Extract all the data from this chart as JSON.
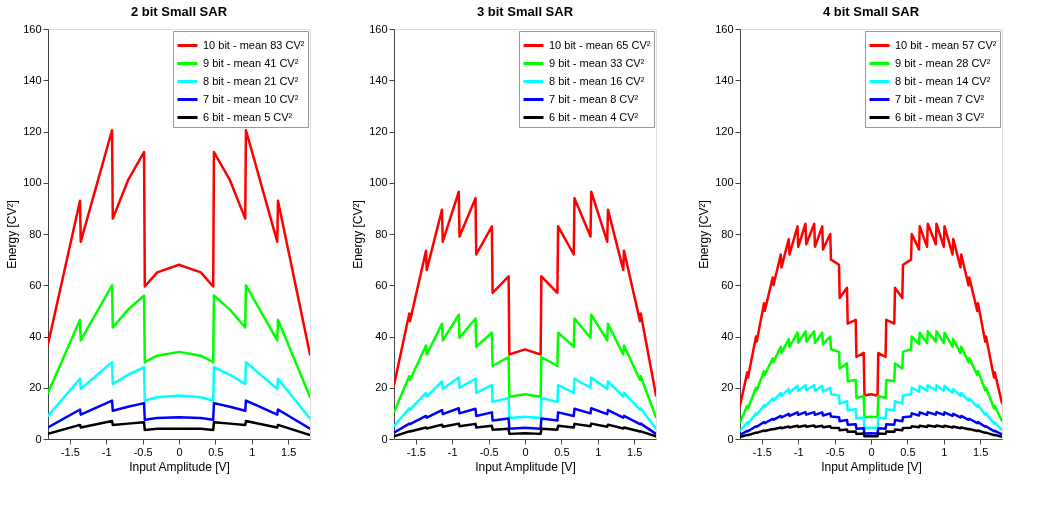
{
  "chart_data": [
    {
      "type": "line",
      "title": "2 bit Small SAR",
      "xlabel": "Input Amplitude [V]",
      "ylabel": "Energy [CV²]",
      "xlim": [
        -1.8,
        1.8
      ],
      "xticks": [
        -1.5,
        -1,
        -0.5,
        0,
        0.5,
        1,
        1.5
      ],
      "ylim": [
        0,
        160
      ],
      "yticks": [
        0,
        20,
        40,
        60,
        80,
        100,
        120,
        140,
        160
      ],
      "grid": false,
      "legend": "top right",
      "marker": "none",
      "line_style": "solid",
      "x": [
        -1.8,
        -1.36,
        -1.35,
        -0.92,
        -0.91,
        -0.7,
        -0.48,
        -0.47,
        -0.3,
        0,
        0.3,
        0.47,
        0.48,
        0.7,
        0.91,
        0.92,
        1.35,
        1.36,
        1.8
      ],
      "series": [
        {
          "name": "10 bit - mean 83 CV²",
          "color": "#ff0000",
          "values": [
            37,
            93,
            77,
            120.5,
            86,
            101,
            112,
            59.5,
            65,
            68,
            65,
            59.5,
            112,
            101,
            86,
            120.5,
            77,
            93,
            33
          ]
        },
        {
          "name": "9  bit  - mean 41 CV²",
          "color": "#00ff00",
          "values": [
            18,
            46.5,
            38.5,
            60,
            43.5,
            50.5,
            56,
            30,
            32.5,
            34,
            32.5,
            30,
            56,
            50.5,
            43.5,
            60,
            38.5,
            46.5,
            16.5
          ]
        },
        {
          "name": "8  bit  - mean 21 CV²",
          "color": "#00ffff",
          "values": [
            9,
            23.5,
            19.5,
            30,
            21.5,
            25,
            28,
            15,
            16.3,
            17,
            16.3,
            15,
            28,
            25,
            21.5,
            30,
            19.5,
            23.5,
            8
          ]
        },
        {
          "name": "7  bit  - mean 10 CV²",
          "color": "#0000ff",
          "values": [
            4.5,
            11.5,
            9.5,
            15,
            11,
            12.6,
            14,
            7.5,
            8.2,
            8.5,
            8.2,
            7.5,
            14,
            12.6,
            11,
            15,
            9.5,
            11.5,
            4
          ]
        },
        {
          "name": "6  bit  - mean   5 CV²",
          "color": "#000000",
          "values": [
            2,
            5.5,
            4.5,
            7,
            5.5,
            6,
            6.5,
            3.5,
            4,
            4,
            4,
            3.5,
            6.5,
            6,
            5.5,
            7,
            4.5,
            5.5,
            1.5
          ]
        }
      ]
    },
    {
      "type": "line",
      "title": "3 bit Small SAR",
      "xlabel": "Input Amplitude [V]",
      "ylabel": "Energy [CV²]",
      "xlim": [
        -1.8,
        1.8
      ],
      "xticks": [
        -1.5,
        -1,
        -0.5,
        0,
        0.5,
        1,
        1.5
      ],
      "ylim": [
        0,
        160
      ],
      "yticks": [
        0,
        20,
        40,
        60,
        80,
        100,
        120,
        140,
        160
      ],
      "grid": false,
      "legend": "top right",
      "marker": "none",
      "line_style": "solid",
      "x": [
        -1.8,
        -1.59,
        -1.58,
        -1.36,
        -1.35,
        -1.14,
        -1.13,
        -0.91,
        -0.9,
        -0.68,
        -0.67,
        -0.455,
        -0.445,
        -0.225,
        -0.215,
        0,
        0.215,
        0.225,
        0.445,
        0.455,
        0.67,
        0.68,
        0.9,
        0.91,
        1.13,
        1.14,
        1.35,
        1.36,
        1.58,
        1.59,
        1.8
      ],
      "series": [
        {
          "name": "10 bit - mean 65 CV²",
          "color": "#ff0000",
          "values": [
            21,
            49,
            46,
            73.5,
            66,
            89.5,
            77,
            96.5,
            79,
            94,
            72,
            83,
            57,
            63.5,
            33,
            35,
            33,
            63.5,
            57,
            83,
            72,
            94,
            79,
            96.5,
            77,
            89.5,
            66,
            73.5,
            46,
            49,
            17
          ]
        },
        {
          "name": "9  bit - mean 33 CV²",
          "color": "#00ff00",
          "values": [
            10.5,
            24.5,
            23,
            36.5,
            33,
            45,
            38.5,
            48.5,
            39.5,
            47,
            36,
            41.5,
            28.5,
            32,
            16.5,
            17.5,
            16.5,
            32,
            28.5,
            41.5,
            36,
            47,
            39.5,
            48.5,
            38.5,
            45,
            33,
            36.5,
            23,
            24.5,
            8.5
          ]
        },
        {
          "name": "8  bit - mean 16 CV²",
          "color": "#00ffff",
          "values": [
            5,
            12,
            11.5,
            18,
            16.5,
            22.5,
            19.5,
            24,
            20,
            23.5,
            18,
            21,
            14.5,
            16,
            8.2,
            8.7,
            8.2,
            16,
            14.5,
            21,
            18,
            23.5,
            20,
            24,
            19.5,
            22.5,
            16.5,
            18,
            11.5,
            12,
            4
          ]
        },
        {
          "name": "7  bit - mean   8 CV²",
          "color": "#0000ff",
          "values": [
            2.5,
            6,
            5.8,
            9,
            8.3,
            11.3,
            9.7,
            12,
            10,
            11.8,
            9,
            10.4,
            7.2,
            8,
            4,
            4.4,
            4,
            8,
            7.2,
            10.4,
            9,
            11.8,
            10,
            12,
            9.7,
            11.3,
            8.3,
            9,
            5.8,
            6,
            2
          ]
        },
        {
          "name": "6  bit - mean   4 CV²",
          "color": "#000000",
          "values": [
            1,
            3,
            2.9,
            4.5,
            4.1,
            5.6,
            4.8,
            6,
            5,
            5.9,
            4.5,
            5.2,
            3.6,
            4,
            2,
            2.2,
            2,
            4,
            3.6,
            5.2,
            4.5,
            5.9,
            5,
            6,
            4.8,
            5.6,
            4.1,
            4.5,
            2.9,
            3,
            1
          ]
        }
      ]
    },
    {
      "type": "line",
      "title": "4 bit Small SAR",
      "xlabel": "Input Amplitude [V]",
      "ylabel": "Energy [CV²]",
      "xlim": [
        -1.8,
        1.8
      ],
      "xticks": [
        -1.5,
        -1,
        -0.5,
        0,
        0.5,
        1,
        1.5
      ],
      "ylim": [
        0,
        160
      ],
      "yticks": [
        0,
        20,
        40,
        60,
        80,
        100,
        120,
        140,
        160
      ],
      "grid": false,
      "legend": "top right",
      "marker": "none",
      "line_style": "solid",
      "x": [
        -1.8,
        -1.7,
        -1.69,
        -1.58,
        -1.57,
        -1.47,
        -1.46,
        -1.35,
        -1.34,
        -1.24,
        -1.23,
        -1.13,
        -1.12,
        -1.01,
        -1.0,
        -0.9,
        -0.89,
        -0.78,
        -0.77,
        -0.67,
        -0.66,
        -0.56,
        -0.55,
        -0.44,
        -0.43,
        -0.33,
        -0.32,
        -0.21,
        -0.2,
        -0.1,
        -0.09,
        0,
        0.09,
        0.1,
        0.2,
        0.21,
        0.32,
        0.33,
        0.43,
        0.44,
        0.55,
        0.56,
        0.66,
        0.67,
        0.77,
        0.78,
        0.89,
        0.9,
        1.0,
        1.01,
        1.12,
        1.13,
        1.23,
        1.24,
        1.34,
        1.35,
        1.46,
        1.47,
        1.57,
        1.58,
        1.69,
        1.7,
        1.8
      ],
      "series": [
        {
          "name": "10 bit - mean 57 CV²",
          "color": "#ff0000",
          "values": [
            13,
            26,
            24,
            40,
            38,
            53,
            50,
            63,
            60,
            72,
            67,
            78,
            72,
            83,
            75,
            84,
            76,
            84,
            75,
            83,
            74,
            80,
            70,
            68,
            55,
            59,
            45,
            46.5,
            32,
            33.6,
            17,
            17.5,
            17,
            33.6,
            32,
            46.5,
            45,
            59,
            55,
            68,
            70,
            80,
            74,
            83,
            75,
            84,
            76,
            84,
            75,
            83,
            72,
            78,
            67,
            72,
            60,
            63,
            50,
            53,
            38,
            40,
            24,
            26,
            14
          ]
        },
        {
          "name": "9  bit - mean 28 CV²",
          "color": "#00ff00",
          "values": [
            6.5,
            13,
            12,
            20,
            19,
            26.5,
            25,
            31.5,
            30,
            36,
            33.5,
            39,
            36,
            41.5,
            37.5,
            42,
            38,
            42,
            37.5,
            41.5,
            37,
            40,
            35,
            34,
            27.5,
            29.5,
            22.5,
            23,
            16,
            16.8,
            8.5,
            8.7,
            8.5,
            16.8,
            16,
            23,
            22.5,
            29.5,
            27.5,
            34,
            35,
            40,
            37,
            41.5,
            37.5,
            42,
            38,
            42,
            37.5,
            41.5,
            36,
            39,
            33.5,
            36,
            30,
            31.5,
            25,
            26.5,
            19,
            20,
            12,
            13,
            7
          ]
        },
        {
          "name": "8  bit - mean 14 CV²",
          "color": "#00ffff",
          "values": [
            3.2,
            6.5,
            6,
            10,
            9.5,
            13.2,
            12.5,
            15.8,
            15,
            18,
            16.8,
            19.5,
            18,
            20.8,
            18.8,
            21,
            19,
            21,
            18.8,
            20.8,
            18.5,
            20,
            17.5,
            17,
            13.8,
            14.8,
            11.2,
            11.6,
            8,
            8.4,
            4.2,
            4.4,
            4.2,
            8.4,
            8,
            11.6,
            11.2,
            14.8,
            13.8,
            17,
            17.5,
            20,
            18.5,
            20.8,
            18.8,
            21,
            19,
            21,
            18.8,
            20.8,
            18,
            19.5,
            16.8,
            18,
            15,
            15.8,
            12.5,
            13.2,
            9.5,
            10,
            6,
            6.5,
            3.5
          ]
        },
        {
          "name": "7  bit - mean   7 CV²",
          "color": "#0000ff",
          "values": [
            1.6,
            3.2,
            3,
            5,
            4.8,
            6.6,
            6.2,
            7.9,
            7.5,
            9,
            8.4,
            9.8,
            9,
            10.4,
            9.4,
            10.5,
            9.5,
            10.5,
            9.4,
            10.4,
            9.2,
            10,
            8.8,
            8.5,
            6.9,
            7.4,
            5.6,
            5.8,
            4,
            4.2,
            2.1,
            2.2,
            2.1,
            4.2,
            4,
            5.8,
            5.6,
            7.4,
            6.9,
            8.5,
            8.8,
            10,
            9.2,
            10.4,
            9.4,
            10.5,
            9.5,
            10.5,
            9.4,
            10.4,
            9,
            9.8,
            8.4,
            9,
            7.5,
            7.9,
            6.2,
            6.6,
            4.8,
            5,
            3,
            3.2,
            1.8
          ]
        },
        {
          "name": "6  bit - mean   3 CV²",
          "color": "#000000",
          "values": [
            0.8,
            1.6,
            1.5,
            2.5,
            2.4,
            3.3,
            3.1,
            3.9,
            3.8,
            4.5,
            4.2,
            4.9,
            4.5,
            5.2,
            4.7,
            5.3,
            4.8,
            5.3,
            4.7,
            5.2,
            4.6,
            5,
            4.4,
            4.3,
            3.4,
            3.7,
            2.8,
            2.9,
            2,
            2.1,
            1.1,
            1.1,
            1.1,
            2.1,
            2,
            2.9,
            2.8,
            3.7,
            3.4,
            4.3,
            4.4,
            5,
            4.6,
            5.2,
            4.7,
            5.3,
            4.8,
            5.3,
            4.7,
            5.2,
            4.5,
            4.9,
            4.2,
            4.5,
            3.8,
            3.9,
            3.1,
            3.3,
            2.4,
            2.5,
            1.5,
            1.6,
            0.9
          ]
        }
      ]
    }
  ]
}
